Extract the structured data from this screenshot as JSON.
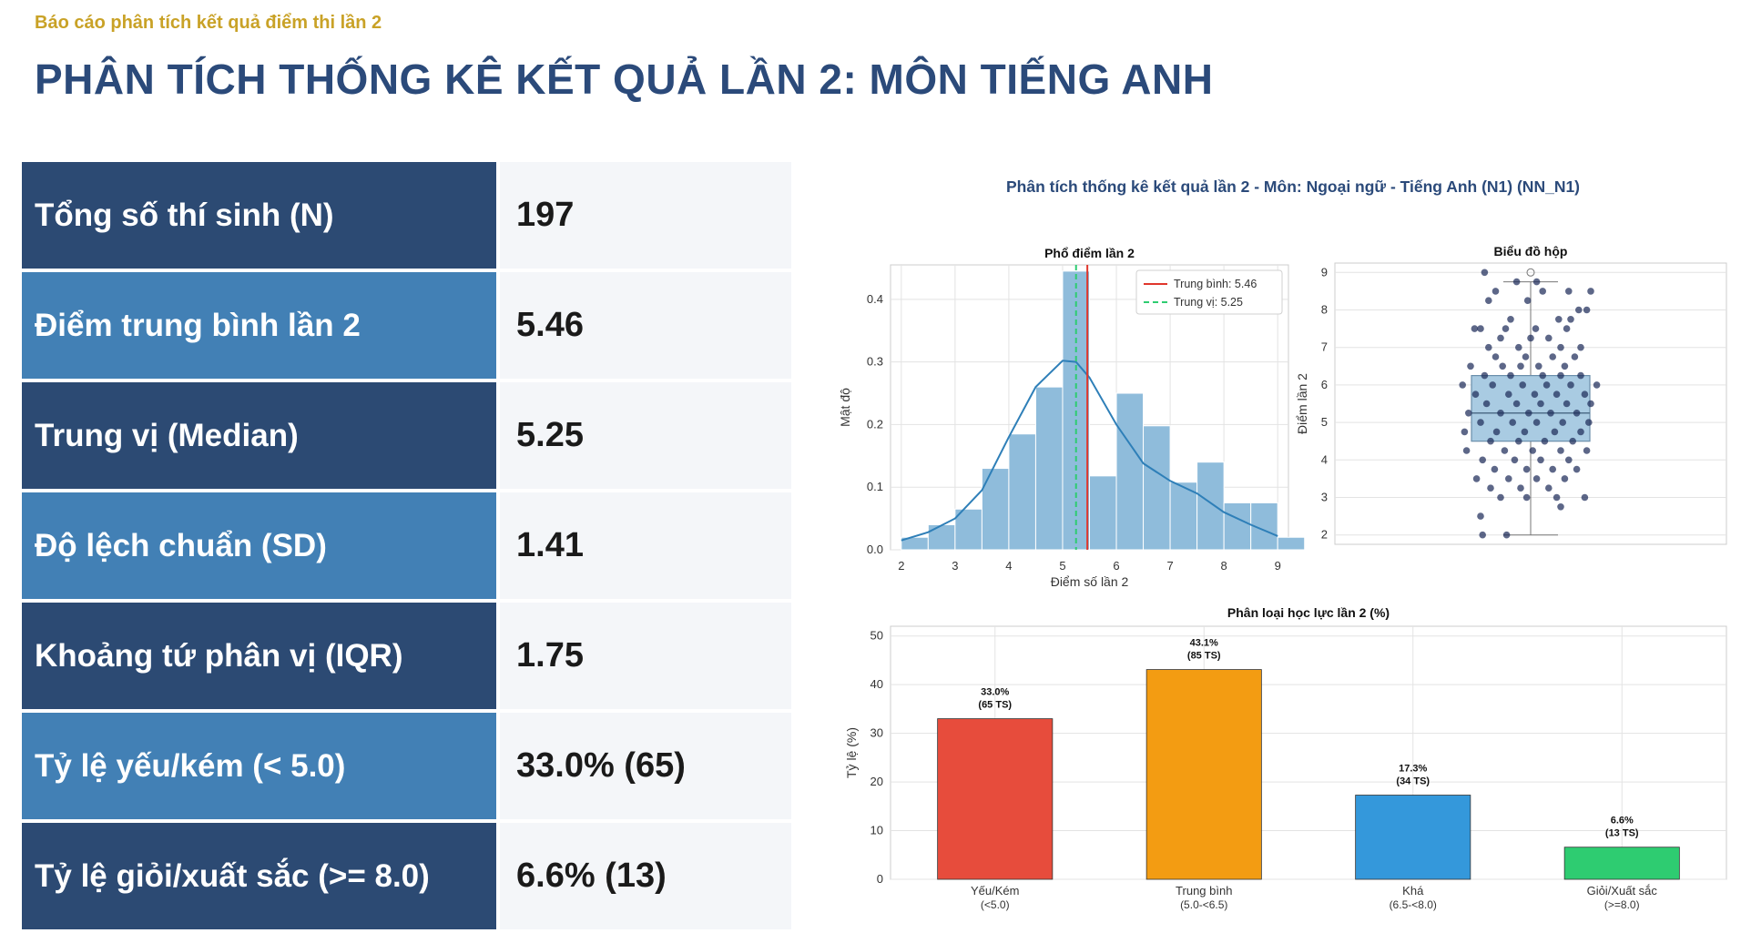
{
  "header": {
    "subtitle": "Báo cáo phân tích kết quả điểm thi lần 2",
    "title": "PHÂN TÍCH THỐNG KÊ KẾT QUẢ LẦN 2: MÔN TIẾNG ANH"
  },
  "stats": [
    {
      "label": "Tổng số thí sinh (N)",
      "value": "197"
    },
    {
      "label": "Điểm trung bình lần 2",
      "value": "5.46"
    },
    {
      "label": "Trung vị (Median)",
      "value": "5.25"
    },
    {
      "label": "Độ lệch chuẩn (SD)",
      "value": "1.41"
    },
    {
      "label": "Khoảng tứ phân vị (IQR)",
      "value": "1.75"
    },
    {
      "label": "Tỷ lệ yếu/kém (< 5.0)",
      "value": "33.0% (65)"
    },
    {
      "label": "Tỷ lệ giỏi/xuất sắc (>= 8.0)",
      "value": "6.6% (13)"
    }
  ],
  "colors": {
    "stat_dark": "#2c4a73",
    "stat_light": "#4280b5",
    "hist_bar": "#8fbcdb",
    "kde_line": "#2e7fb8",
    "mean_line": "#e0362c",
    "median_line": "#2ecc71",
    "box_fill": "#a9cbe2"
  },
  "figure": {
    "suptitle": "Phân tích thống kê kết quả lần 2 - Môn: Ngoại ngữ - Tiếng Anh (N1) (NN_N1)"
  },
  "chart_data": [
    {
      "type": "bar",
      "subtype": "histogram",
      "title": "Phổ điểm lần 2",
      "xlabel": "Điểm số lần 2",
      "ylabel": "Mật độ",
      "xlim": [
        1.8,
        9.2
      ],
      "ylim": [
        0,
        0.455
      ],
      "xticks": [
        2,
        3,
        4,
        5,
        6,
        7,
        8,
        9
      ],
      "yticks": [
        0.0,
        0.1,
        0.2,
        0.3,
        0.4
      ],
      "bin_width": 0.5,
      "bins": [
        {
          "x0": 2.0,
          "value": 0.02
        },
        {
          "x0": 2.5,
          "value": 0.04
        },
        {
          "x0": 3.0,
          "value": 0.065
        },
        {
          "x0": 3.5,
          "value": 0.13
        },
        {
          "x0": 4.0,
          "value": 0.185
        },
        {
          "x0": 4.5,
          "value": 0.26
        },
        {
          "x0": 5.0,
          "value": 0.445
        },
        {
          "x0": 5.5,
          "value": 0.118
        },
        {
          "x0": 6.0,
          "value": 0.25
        },
        {
          "x0": 6.5,
          "value": 0.198
        },
        {
          "x0": 7.0,
          "value": 0.108
        },
        {
          "x0": 7.5,
          "value": 0.14
        },
        {
          "x0": 8.0,
          "value": 0.075
        },
        {
          "x0": 8.5,
          "value": 0.075
        },
        {
          "x0": 9.0,
          "value": 0.02
        }
      ],
      "kde": [
        {
          "x": 2.0,
          "y": 0.015
        },
        {
          "x": 2.5,
          "y": 0.028
        },
        {
          "x": 3.0,
          "y": 0.05
        },
        {
          "x": 3.5,
          "y": 0.095
        },
        {
          "x": 4.0,
          "y": 0.18
        },
        {
          "x": 4.5,
          "y": 0.26
        },
        {
          "x": 5.0,
          "y": 0.302
        },
        {
          "x": 5.25,
          "y": 0.3
        },
        {
          "x": 5.5,
          "y": 0.275
        },
        {
          "x": 6.0,
          "y": 0.2
        },
        {
          "x": 6.5,
          "y": 0.138
        },
        {
          "x": 7.0,
          "y": 0.11
        },
        {
          "x": 7.5,
          "y": 0.09
        },
        {
          "x": 8.0,
          "y": 0.06
        },
        {
          "x": 8.5,
          "y": 0.04
        },
        {
          "x": 9.0,
          "y": 0.022
        }
      ],
      "mean": 5.46,
      "median": 5.25,
      "legend": [
        "Trung bình: 5.46",
        "Trung vị: 5.25"
      ],
      "legend_position": "top-right",
      "grid": true
    },
    {
      "type": "scatter",
      "subtype": "box_with_jitter",
      "title": "Biểu đồ hộp",
      "ylabel": "Điểm lần 2",
      "ylim": [
        1.75,
        9.25
      ],
      "yticks": [
        2,
        3,
        4,
        5,
        6,
        7,
        8,
        9
      ],
      "box": {
        "q1": 4.5,
        "median": 5.25,
        "q3": 6.25,
        "whisker_low": 2.0,
        "whisker_high": 8.75
      },
      "outliers": [
        9.0
      ],
      "points": [
        {
          "x": -0.46,
          "y": 9.0
        },
        {
          "x": -0.14,
          "y": 8.75
        },
        {
          "x": 0.06,
          "y": 8.75
        },
        {
          "x": 0.12,
          "y": 8.5
        },
        {
          "x": -0.35,
          "y": 8.5
        },
        {
          "x": 0.38,
          "y": 8.5
        },
        {
          "x": 0.6,
          "y": 8.5
        },
        {
          "x": -0.42,
          "y": 8.25
        },
        {
          "x": -0.03,
          "y": 8.25
        },
        {
          "x": 0.48,
          "y": 8.0
        },
        {
          "x": 0.56,
          "y": 8.0
        },
        {
          "x": 0.28,
          "y": 7.75
        },
        {
          "x": -0.2,
          "y": 7.75
        },
        {
          "x": 0.4,
          "y": 7.75
        },
        {
          "x": -0.5,
          "y": 7.5
        },
        {
          "x": -0.56,
          "y": 7.5
        },
        {
          "x": -0.25,
          "y": 7.5
        },
        {
          "x": 0.05,
          "y": 7.5
        },
        {
          "x": 0.36,
          "y": 7.5
        },
        {
          "x": -0.3,
          "y": 7.25
        },
        {
          "x": 0.0,
          "y": 7.25
        },
        {
          "x": 0.18,
          "y": 7.25
        },
        {
          "x": -0.42,
          "y": 7.0
        },
        {
          "x": -0.12,
          "y": 7.0
        },
        {
          "x": 0.3,
          "y": 7.0
        },
        {
          "x": 0.5,
          "y": 7.0
        },
        {
          "x": -0.35,
          "y": 6.75
        },
        {
          "x": -0.05,
          "y": 6.75
        },
        {
          "x": 0.22,
          "y": 6.75
        },
        {
          "x": 0.44,
          "y": 6.75
        },
        {
          "x": -0.6,
          "y": 6.5
        },
        {
          "x": -0.28,
          "y": 6.5
        },
        {
          "x": -0.1,
          "y": 6.5
        },
        {
          "x": 0.08,
          "y": 6.5
        },
        {
          "x": 0.34,
          "y": 6.5
        },
        {
          "x": -0.46,
          "y": 6.25
        },
        {
          "x": -0.2,
          "y": 6.25
        },
        {
          "x": 0.12,
          "y": 6.25
        },
        {
          "x": 0.3,
          "y": 6.25
        },
        {
          "x": 0.5,
          "y": 6.25
        },
        {
          "x": -0.38,
          "y": 6.0
        },
        {
          "x": -0.08,
          "y": 6.0
        },
        {
          "x": 0.16,
          "y": 6.0
        },
        {
          "x": 0.4,
          "y": 6.0
        },
        {
          "x": -0.68,
          "y": 6.0
        },
        {
          "x": 0.66,
          "y": 6.0
        },
        {
          "x": -0.55,
          "y": 5.75
        },
        {
          "x": -0.22,
          "y": 5.75
        },
        {
          "x": 0.04,
          "y": 5.75
        },
        {
          "x": 0.26,
          "y": 5.75
        },
        {
          "x": 0.54,
          "y": 5.75
        },
        {
          "x": -0.44,
          "y": 5.5
        },
        {
          "x": -0.14,
          "y": 5.5
        },
        {
          "x": 0.1,
          "y": 5.5
        },
        {
          "x": 0.36,
          "y": 5.5
        },
        {
          "x": 0.6,
          "y": 5.5
        },
        {
          "x": -0.62,
          "y": 5.25
        },
        {
          "x": -0.3,
          "y": 5.25
        },
        {
          "x": -0.02,
          "y": 5.25
        },
        {
          "x": 0.2,
          "y": 5.25
        },
        {
          "x": 0.46,
          "y": 5.25
        },
        {
          "x": -0.5,
          "y": 5.0
        },
        {
          "x": -0.18,
          "y": 5.0
        },
        {
          "x": 0.06,
          "y": 5.0
        },
        {
          "x": 0.32,
          "y": 5.0
        },
        {
          "x": 0.58,
          "y": 5.0
        },
        {
          "x": -0.66,
          "y": 4.75
        },
        {
          "x": -0.34,
          "y": 4.75
        },
        {
          "x": -0.06,
          "y": 4.75
        },
        {
          "x": 0.24,
          "y": 4.75
        },
        {
          "x": 0.5,
          "y": 4.75
        },
        {
          "x": -0.4,
          "y": 4.5
        },
        {
          "x": -0.12,
          "y": 4.5
        },
        {
          "x": 0.14,
          "y": 4.5
        },
        {
          "x": 0.42,
          "y": 4.5
        },
        {
          "x": -0.64,
          "y": 4.25
        },
        {
          "x": -0.26,
          "y": 4.25
        },
        {
          "x": 0.02,
          "y": 4.25
        },
        {
          "x": 0.3,
          "y": 4.25
        },
        {
          "x": 0.56,
          "y": 4.25
        },
        {
          "x": -0.48,
          "y": 4.0
        },
        {
          "x": -0.16,
          "y": 4.0
        },
        {
          "x": 0.1,
          "y": 4.0
        },
        {
          "x": 0.38,
          "y": 4.0
        },
        {
          "x": -0.36,
          "y": 3.75
        },
        {
          "x": -0.04,
          "y": 3.75
        },
        {
          "x": 0.22,
          "y": 3.75
        },
        {
          "x": 0.46,
          "y": 3.75
        },
        {
          "x": -0.54,
          "y": 3.5
        },
        {
          "x": -0.22,
          "y": 3.5
        },
        {
          "x": 0.06,
          "y": 3.5
        },
        {
          "x": 0.34,
          "y": 3.5
        },
        {
          "x": -0.1,
          "y": 3.25
        },
        {
          "x": 0.18,
          "y": 3.25
        },
        {
          "x": -0.4,
          "y": 3.25
        },
        {
          "x": -0.3,
          "y": 3.0
        },
        {
          "x": 0.26,
          "y": 3.0
        },
        {
          "x": 0.54,
          "y": 3.0
        },
        {
          "x": -0.04,
          "y": 3.0
        },
        {
          "x": 0.3,
          "y": 2.75
        },
        {
          "x": -0.5,
          "y": 2.5
        },
        {
          "x": -0.24,
          "y": 2.0
        },
        {
          "x": -0.48,
          "y": 2.0
        }
      ],
      "grid": true
    },
    {
      "type": "bar",
      "title": "Phân loại học lực lần 2 (%)",
      "ylabel": "Tỷ lệ (%)",
      "ylim": [
        0,
        52
      ],
      "yticks": [
        0,
        10,
        20,
        30,
        40,
        50
      ],
      "categories": [
        {
          "name": "Yếu/Kém",
          "range": "(<5.0)"
        },
        {
          "name": "Trung bình",
          "range": "(5.0-<6.5)"
        },
        {
          "name": "Khá",
          "range": "(6.5-<8.0)"
        },
        {
          "name": "Giỏi/Xuất sắc",
          "range": "(>=8.0)"
        }
      ],
      "values": [
        33.0,
        43.1,
        17.3,
        6.6
      ],
      "data_labels": [
        {
          "pct": "33.0%",
          "count": "(65 TS)"
        },
        {
          "pct": "43.1%",
          "count": "(85 TS)"
        },
        {
          "pct": "17.3%",
          "count": "(34 TS)"
        },
        {
          "pct": "6.6%",
          "count": "(13 TS)"
        }
      ],
      "colors": [
        "#e74c3c",
        "#f39c12",
        "#3498db",
        "#2ecc71"
      ],
      "grid": true
    }
  ]
}
